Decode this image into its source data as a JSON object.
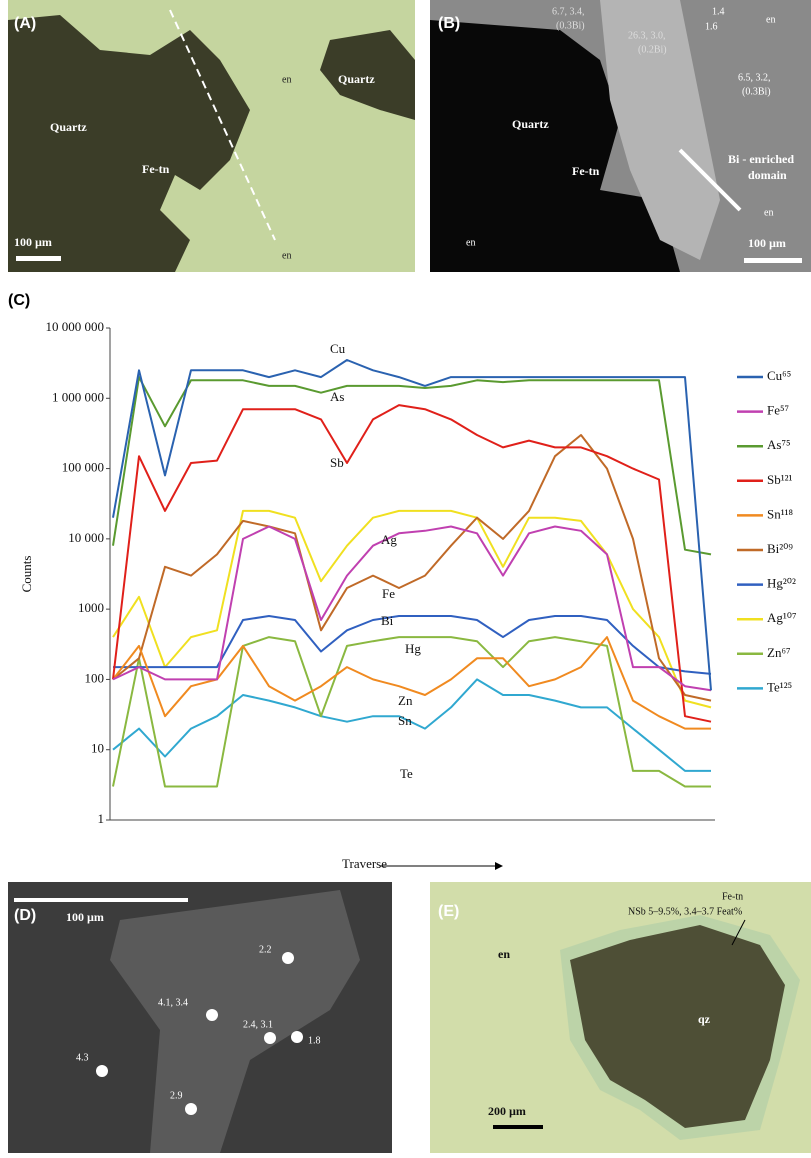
{
  "panels": {
    "a": {
      "label": "(A)",
      "quartz_left": "Quartz",
      "fe_tn": "Fe-tn",
      "quartz_right": "Quartz",
      "en_top": "en",
      "en_bottom": "en",
      "scale": "100 µm"
    },
    "b": {
      "label": "(B)",
      "spot1a": "6.7, 3.4,",
      "spot1b": "(0.3Bi)",
      "spot2a": "26.3, 3.0,",
      "spot2b": "(0.2Bi)",
      "spot3a": "1.4",
      "spot3b": "1.6",
      "en_top": "en",
      "spot4a": "6.5, 3.2,",
      "spot4b": "(0.3Bi)",
      "quartz": "Quartz",
      "fe_tn": "Fe-tn",
      "bi1": "Bi - enriched",
      "bi2": "domain",
      "en_left": "en",
      "en_right": "en",
      "scale": "100 µm"
    },
    "c": {
      "label": "(C)"
    },
    "d": {
      "label": "(D)",
      "scale": "100 µm",
      "s1": "2.2",
      "s2": "4.1, 3.4",
      "s3": "2.4, 3.1",
      "s4": "1.8",
      "s5": "4.3",
      "s6": "2.9"
    },
    "e": {
      "label": "(E)",
      "fe_tn": "Fe-tn",
      "note": "NSb 5–9.5%, 3.4–3.7 Feat%",
      "en": "en",
      "qz": "qz",
      "scale": "200 µm"
    }
  },
  "chart_data": {
    "type": "line",
    "log_scale": true,
    "legend": "right",
    "y_label": "Counts",
    "x_label": "Traverse",
    "categories": [
      null,
      null,
      null,
      null,
      null,
      null,
      null,
      null,
      null,
      null,
      null,
      null,
      null,
      null,
      null,
      null,
      null,
      null,
      null,
      null,
      null,
      null,
      null,
      null
    ],
    "ylim": [
      1,
      10000000
    ],
    "yticks": [
      {
        "value": 10000000,
        "label": "10 000 000"
      },
      {
        "value": 1000000,
        "label": "1 000 000"
      },
      {
        "value": 100000,
        "label": "100 000"
      },
      {
        "value": 10000,
        "label": "10 000"
      },
      1000,
      100,
      10,
      1
    ],
    "annotations": [
      "Cu",
      "As",
      "Sb",
      "Ag",
      "Fe",
      "Bi",
      "Hg",
      "Zn",
      "Sn",
      "Te"
    ],
    "series": [
      {
        "name": "Cu⁶⁵",
        "color": "#2a62b0",
        "values": [
          20000,
          2500000,
          80000,
          2500000,
          2500000,
          2500000,
          2000000,
          2500000,
          2000000,
          3500000,
          2500000,
          2000000,
          1500000,
          2000000,
          2000000,
          2000000,
          2000000,
          2000000,
          2000000,
          2000000,
          2000000,
          2000000,
          2000000,
          70
        ]
      },
      {
        "name": "Fe⁵⁷",
        "color": "#c040b0",
        "values": [
          100,
          150,
          100,
          100,
          100,
          10000,
          15000,
          10000,
          700,
          3000,
          8000,
          12000,
          13000,
          15000,
          12000,
          3000,
          12000,
          15000,
          13000,
          6000,
          150,
          150,
          80,
          70
        ]
      },
      {
        "name": "As⁷⁵",
        "color": "#5a9a30",
        "values": [
          8000,
          2000000,
          400000,
          1800000,
          1800000,
          1800000,
          1500000,
          1500000,
          1200000,
          1500000,
          1500000,
          1500000,
          1400000,
          1500000,
          1800000,
          1700000,
          1800000,
          1800000,
          1800000,
          1800000,
          1800000,
          1800000,
          7000,
          6000
        ]
      },
      {
        "name": "Sb¹²¹",
        "color": "#e0201a",
        "values": [
          100,
          150000,
          25000,
          120000,
          130000,
          700000,
          700000,
          700000,
          500000,
          120000,
          500000,
          800000,
          700000,
          500000,
          300000,
          200000,
          250000,
          200000,
          200000,
          150000,
          100000,
          70000,
          30,
          25
        ]
      },
      {
        "name": "Sn¹¹⁸",
        "color": "#f08a20",
        "values": [
          100,
          300,
          30,
          80,
          100,
          300,
          80,
          50,
          80,
          150,
          100,
          80,
          60,
          100,
          200,
          200,
          80,
          100,
          150,
          400,
          50,
          30,
          20,
          20
        ]
      },
      {
        "name": "Bi²⁰⁹",
        "color": "#c06a28",
        "values": [
          100,
          200,
          4000,
          3000,
          6000,
          18000,
          15000,
          12000,
          500,
          2000,
          3000,
          2000,
          3000,
          8000,
          20000,
          10000,
          25000,
          150000,
          300000,
          100000,
          10000,
          200,
          60,
          50
        ]
      },
      {
        "name": "Hg²⁰²",
        "color": "#3060c0",
        "values": [
          150,
          150,
          150,
          150,
          150,
          700,
          800,
          700,
          250,
          500,
          700,
          800,
          800,
          800,
          700,
          400,
          700,
          800,
          800,
          700,
          300,
          150,
          130,
          120
        ]
      },
      {
        "name": "Ag¹⁰⁷",
        "color": "#f0e020",
        "values": [
          400,
          1500,
          150,
          400,
          500,
          25000,
          25000,
          20000,
          2500,
          8000,
          20000,
          25000,
          25000,
          25000,
          20000,
          4000,
          20000,
          20000,
          18000,
          6000,
          1000,
          400,
          50,
          40
        ]
      },
      {
        "name": "Zn⁶⁷",
        "color": "#8ab840",
        "values": [
          3,
          200,
          3,
          3,
          3,
          300,
          400,
          350,
          30,
          300,
          350,
          400,
          400,
          400,
          350,
          150,
          350,
          400,
          350,
          300,
          5,
          5,
          3,
          3
        ]
      },
      {
        "name": "Te¹²⁵",
        "color": "#30a8d0",
        "values": [
          10,
          20,
          8,
          20,
          30,
          60,
          50,
          40,
          30,
          25,
          30,
          30,
          20,
          40,
          100,
          60,
          60,
          50,
          40,
          40,
          20,
          10,
          5,
          5
        ]
      }
    ]
  }
}
